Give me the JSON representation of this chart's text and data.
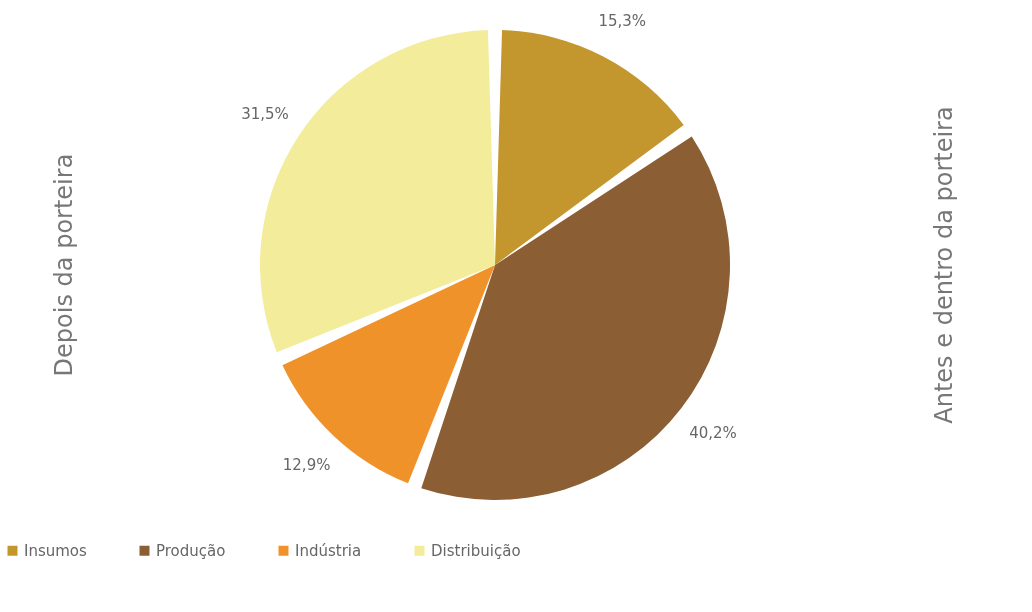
{
  "chart_data": {
    "type": "pie",
    "categories": [
      "Insumos",
      "Produção",
      "Indústria",
      "Distribuição"
    ],
    "values": [
      15.3,
      40.2,
      12.9,
      31.5
    ],
    "colors": [
      "#c4962e",
      "#8b5e34",
      "#f0922a",
      "#f3ec9a"
    ],
    "value_labels": [
      "15,3%",
      "40,2%",
      "12,9%",
      "31,5%"
    ],
    "annotations": [
      "Depois da porteira",
      "Antes e dentro da porteira"
    ],
    "legend": "bottom"
  }
}
